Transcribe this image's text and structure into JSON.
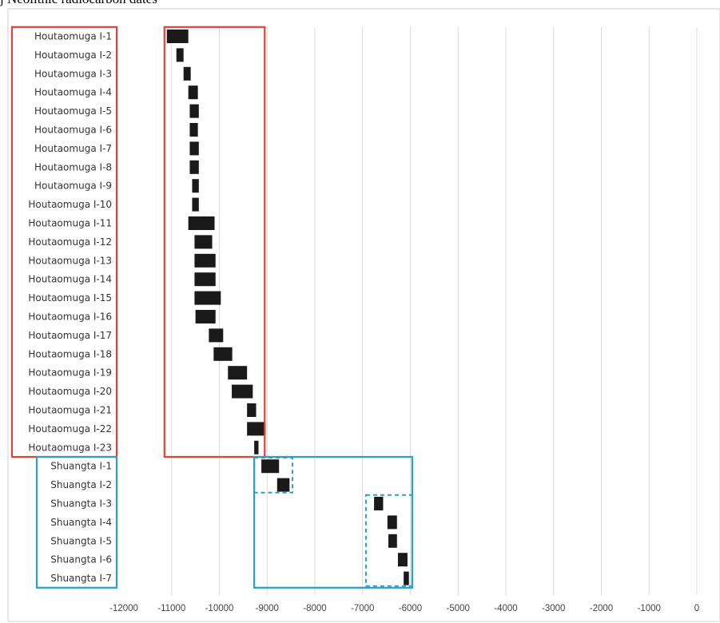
{
  "chart_data": {
    "type": "bar",
    "title": "j Neolithic radiocarbon dates",
    "orientation": "horizontal-range",
    "xlim": [
      -12000,
      0
    ],
    "xticks": [
      -12000,
      -11000,
      -10000,
      -9000,
      -8000,
      -7000,
      -6000,
      -5000,
      -4000,
      -3000,
      -2000,
      -1000,
      0
    ],
    "grid": true,
    "categories": [
      "Houtaomuga I-1",
      "Houtaomuga I-2",
      "Houtaomuga I-3",
      "Houtaomuga I-4",
      "Houtaomuga I-5",
      "Houtaomuga I-6",
      "Houtaomuga I-7",
      "Houtaomuga I-8",
      "Houtaomuga I-9",
      "Houtaomuga I-10",
      "Houtaomuga I-11",
      "Houtaomuga I-12",
      "Houtaomuga I-13",
      "Houtaomuga I-14",
      "Houtaomuga I-15",
      "Houtaomuga I-16",
      "Houtaomuga I-17",
      "Houtaomuga I-18",
      "Houtaomuga I-19",
      "Houtaomuga I-20",
      "Houtaomuga I-21",
      "Houtaomuga I-22",
      "Houtaomuga I-23",
      "Shuangta I-1",
      "Shuangta I-2",
      "Shuangta I-3",
      "Shuangta I-4",
      "Shuangta I-5",
      "Shuangta I-6",
      "Shuangta I-7"
    ],
    "ranges": [
      [
        -11100,
        -10650
      ],
      [
        -10900,
        -10750
      ],
      [
        -10750,
        -10600
      ],
      [
        -10650,
        -10450
      ],
      [
        -10620,
        -10430
      ],
      [
        -10620,
        -10450
      ],
      [
        -10620,
        -10430
      ],
      [
        -10620,
        -10430
      ],
      [
        -10570,
        -10430
      ],
      [
        -10570,
        -10430
      ],
      [
        -10650,
        -10100
      ],
      [
        -10520,
        -10150
      ],
      [
        -10520,
        -10080
      ],
      [
        -10520,
        -10080
      ],
      [
        -10520,
        -9970
      ],
      [
        -10500,
        -10080
      ],
      [
        -10220,
        -9920
      ],
      [
        -10120,
        -9730
      ],
      [
        -9820,
        -9420
      ],
      [
        -9740,
        -9300
      ],
      [
        -9420,
        -9230
      ],
      [
        -9420,
        -9030
      ],
      [
        -9270,
        -9180
      ],
      [
        -9120,
        -8750
      ],
      [
        -8790,
        -8530
      ],
      [
        -6760,
        -6570
      ],
      [
        -6480,
        -6280
      ],
      [
        -6460,
        -6280
      ],
      [
        -6260,
        -6060
      ],
      [
        -6140,
        -6030
      ]
    ],
    "bar_color": "#1a1a1a",
    "groups": [
      {
        "label": "Houtaomuga",
        "rows": [
          1,
          23
        ],
        "x_range": [
          -11150,
          -9050
        ],
        "color": "#d9453b"
      },
      {
        "label": "Shuangta",
        "rows": [
          24,
          30
        ],
        "x_range": [
          -9270,
          -5960
        ],
        "color": "#2a9fc8"
      }
    ],
    "subgroups": [
      {
        "rows": [
          24,
          25
        ],
        "x_range": [
          -9270,
          -8470
        ],
        "style": "dashed",
        "color": "#2a9fc8"
      },
      {
        "rows": [
          26,
          30
        ],
        "x_range": [
          -6930,
          -5960
        ],
        "style": "dashed",
        "color": "#2a9fc8"
      }
    ]
  }
}
